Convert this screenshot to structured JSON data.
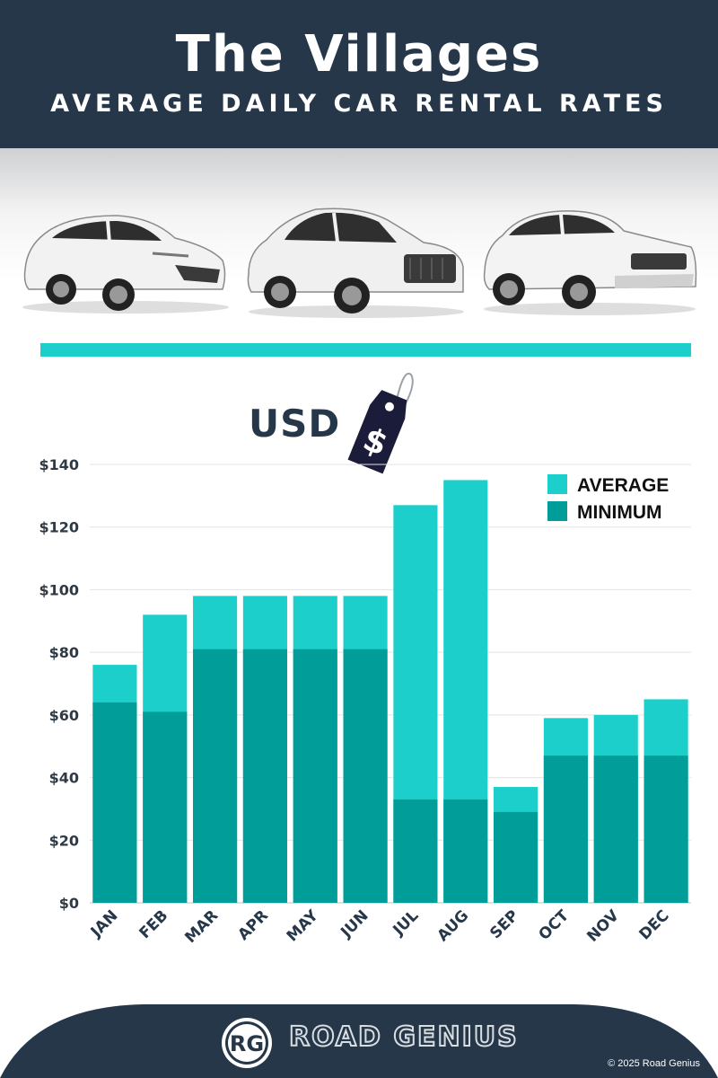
{
  "header": {
    "title": "The Villages",
    "subtitle": "AVERAGE DAILY CAR RENTAL RATES"
  },
  "images": [
    {
      "icon": "hatchback-car-icon"
    },
    {
      "icon": "suv-car-icon"
    },
    {
      "icon": "luxury-suv-car-icon"
    }
  ],
  "currency": {
    "label": "USD",
    "tag_symbol": "$"
  },
  "colors": {
    "navy": "#253749",
    "average": "#1ccfcb",
    "minimum": "#009d99",
    "grid": "#e3e3e3"
  },
  "chart_data": {
    "type": "bar",
    "stacked_overlay": true,
    "categories": [
      "JAN",
      "FEB",
      "MAR",
      "APR",
      "MAY",
      "JUN",
      "JUL",
      "AUG",
      "SEP",
      "OCT",
      "NOV",
      "DEC"
    ],
    "series": [
      {
        "name": "AVERAGE",
        "values": [
          76,
          92,
          98,
          98,
          98,
          98,
          127,
          135,
          37,
          59,
          60,
          65
        ]
      },
      {
        "name": "MINIMUM",
        "values": [
          64,
          61,
          81,
          81,
          81,
          81,
          33,
          33,
          29,
          47,
          47,
          47
        ]
      }
    ],
    "ylim": [
      0,
      140
    ],
    "yticks": [
      0,
      20,
      40,
      60,
      80,
      100,
      120,
      140
    ],
    "ytick_labels": [
      "$0",
      "$20",
      "$40",
      "$60",
      "$80",
      "$100",
      "$120",
      "$140"
    ],
    "grid": true,
    "legend_position": "top-right"
  },
  "footer": {
    "logo_initials": "RG",
    "brand": "ROAD GENIUS",
    "copyright": "© 2025 Road Genius"
  }
}
